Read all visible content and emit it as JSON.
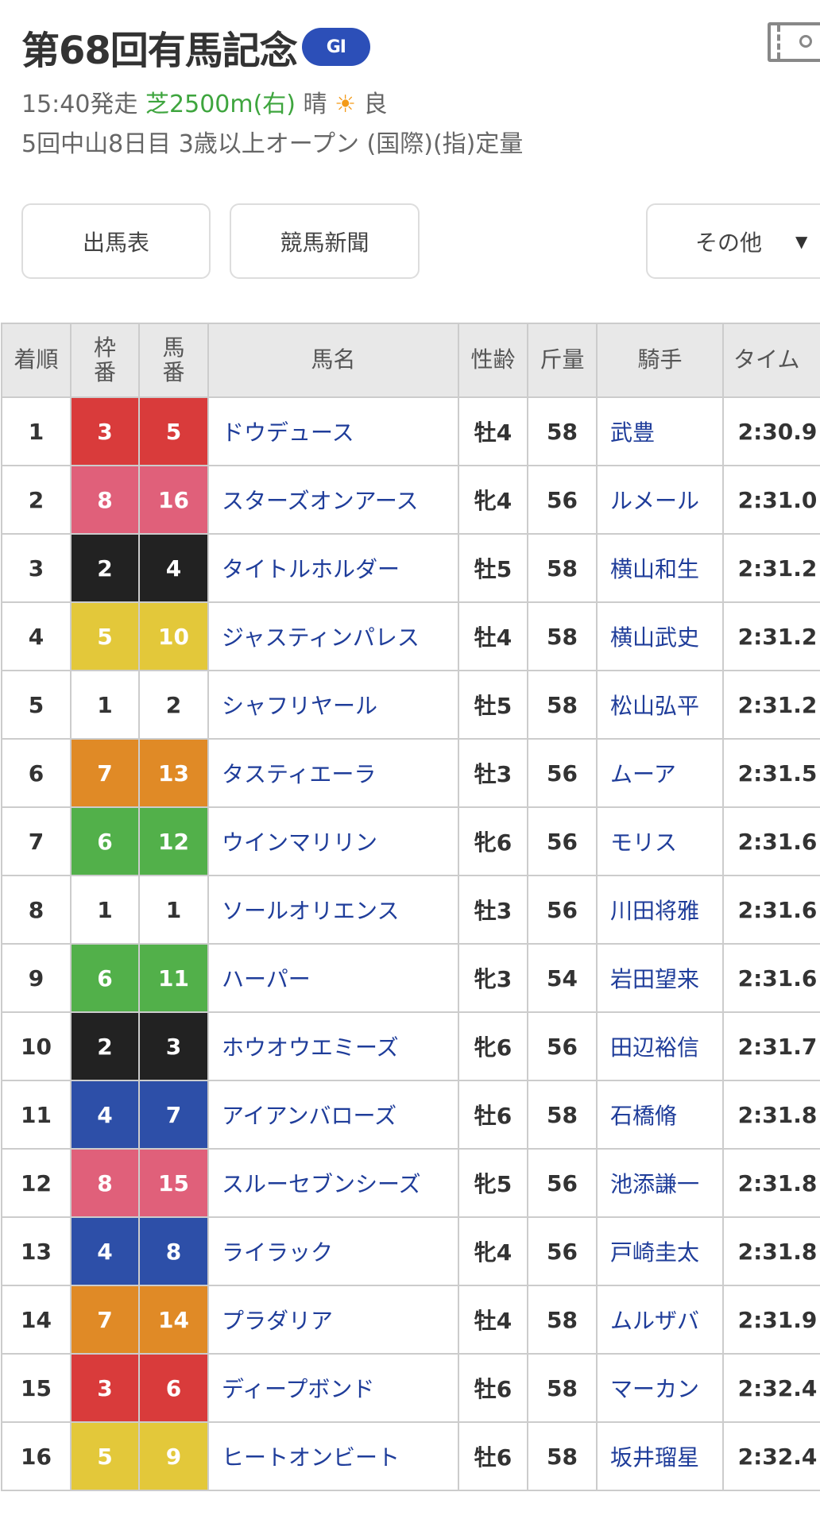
{
  "header": {
    "title": "第68回有馬記念",
    "grade": "GI",
    "start": "15:40発走",
    "course": "芝2500m(右)",
    "weather": "晴",
    "weather_icon": "sun-icon",
    "condition": "良",
    "info": "5回中山8日目 3歳以上オープン (国際)(指)定量",
    "video_icon": "film-icon"
  },
  "buttons": {
    "entries": "出馬表",
    "newspaper": "競馬新聞",
    "other": "その他",
    "other_arrow": "▼"
  },
  "table": {
    "headers": {
      "rank": "着順",
      "frame": "枠番",
      "number": "馬番",
      "name": "馬名",
      "sex_age": "性齢",
      "weight": "斤量",
      "jockey": "騎手",
      "time": "タイム"
    },
    "frame_colors": {
      "1": "#ffffff",
      "2": "#222222",
      "3": "#d93b3b",
      "4": "#2d4fa8",
      "5": "#e3c83a",
      "6": "#52b04a",
      "7": "#e08a26",
      "8": "#e0607a"
    },
    "rows": [
      {
        "rank": "1",
        "frame": "3",
        "number": "5",
        "name": "ドウデュース",
        "sex_age": "牡4",
        "weight": "58",
        "jockey": "武豊",
        "time": "2:30.9"
      },
      {
        "rank": "2",
        "frame": "8",
        "number": "16",
        "name": "スターズオンアース",
        "sex_age": "牝4",
        "weight": "56",
        "jockey": "ルメール",
        "time": "2:31.0"
      },
      {
        "rank": "3",
        "frame": "2",
        "number": "4",
        "name": "タイトルホルダー",
        "sex_age": "牡5",
        "weight": "58",
        "jockey": "横山和生",
        "time": "2:31.2"
      },
      {
        "rank": "4",
        "frame": "5",
        "number": "10",
        "name": "ジャスティンパレス",
        "sex_age": "牡4",
        "weight": "58",
        "jockey": "横山武史",
        "time": "2:31.2"
      },
      {
        "rank": "5",
        "frame": "1",
        "number": "2",
        "name": "シャフリヤール",
        "sex_age": "牡5",
        "weight": "58",
        "jockey": "松山弘平",
        "time": "2:31.2"
      },
      {
        "rank": "6",
        "frame": "7",
        "number": "13",
        "name": "タスティエーラ",
        "sex_age": "牡3",
        "weight": "56",
        "jockey": "ムーア",
        "time": "2:31.5"
      },
      {
        "rank": "7",
        "frame": "6",
        "number": "12",
        "name": "ウインマリリン",
        "sex_age": "牝6",
        "weight": "56",
        "jockey": "モリス",
        "time": "2:31.6"
      },
      {
        "rank": "8",
        "frame": "1",
        "number": "1",
        "name": "ソールオリエンス",
        "sex_age": "牡3",
        "weight": "56",
        "jockey": "川田将雅",
        "time": "2:31.6"
      },
      {
        "rank": "9",
        "frame": "6",
        "number": "11",
        "name": "ハーパー",
        "sex_age": "牝3",
        "weight": "54",
        "jockey": "岩田望来",
        "time": "2:31.6"
      },
      {
        "rank": "10",
        "frame": "2",
        "number": "3",
        "name": "ホウオウエミーズ",
        "sex_age": "牝6",
        "weight": "56",
        "jockey": "田辺裕信",
        "time": "2:31.7"
      },
      {
        "rank": "11",
        "frame": "4",
        "number": "7",
        "name": "アイアンバローズ",
        "sex_age": "牡6",
        "weight": "58",
        "jockey": "石橋脩",
        "time": "2:31.8"
      },
      {
        "rank": "12",
        "frame": "8",
        "number": "15",
        "name": "スルーセブンシーズ",
        "sex_age": "牝5",
        "weight": "56",
        "jockey": "池添謙一",
        "time": "2:31.8"
      },
      {
        "rank": "13",
        "frame": "4",
        "number": "8",
        "name": "ライラック",
        "sex_age": "牝4",
        "weight": "56",
        "jockey": "戸崎圭太",
        "time": "2:31.8"
      },
      {
        "rank": "14",
        "frame": "7",
        "number": "14",
        "name": "プラダリア",
        "sex_age": "牡4",
        "weight": "58",
        "jockey": "ムルザバ",
        "time": "2:31.9"
      },
      {
        "rank": "15",
        "frame": "3",
        "number": "6",
        "name": "ディープボンド",
        "sex_age": "牡6",
        "weight": "58",
        "jockey": "マーカン",
        "time": "2:32.4"
      },
      {
        "rank": "16",
        "frame": "5",
        "number": "9",
        "name": "ヒートオンビート",
        "sex_age": "牡6",
        "weight": "58",
        "jockey": "坂井瑠星",
        "time": "2:32.4"
      }
    ]
  }
}
